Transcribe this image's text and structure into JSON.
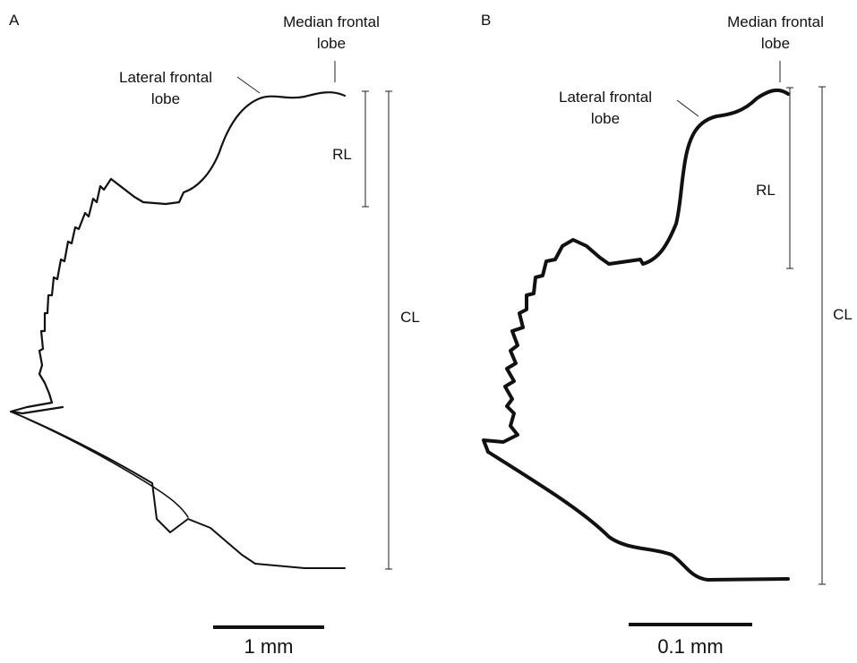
{
  "panels": [
    {
      "label": "A",
      "median_lobe": [
        "Median frontal",
        "lobe"
      ],
      "lateral_lobe": [
        "Lateral frontal",
        "lobe"
      ],
      "rl": "RL",
      "cl": "CL",
      "scale": "1 mm"
    },
    {
      "label": "B",
      "median_lobe": [
        "Median frontal",
        "lobe"
      ],
      "lateral_lobe": [
        "Lateral frontal",
        "lobe"
      ],
      "rl": "RL",
      "cl": "CL",
      "scale": "0.1 mm"
    }
  ]
}
